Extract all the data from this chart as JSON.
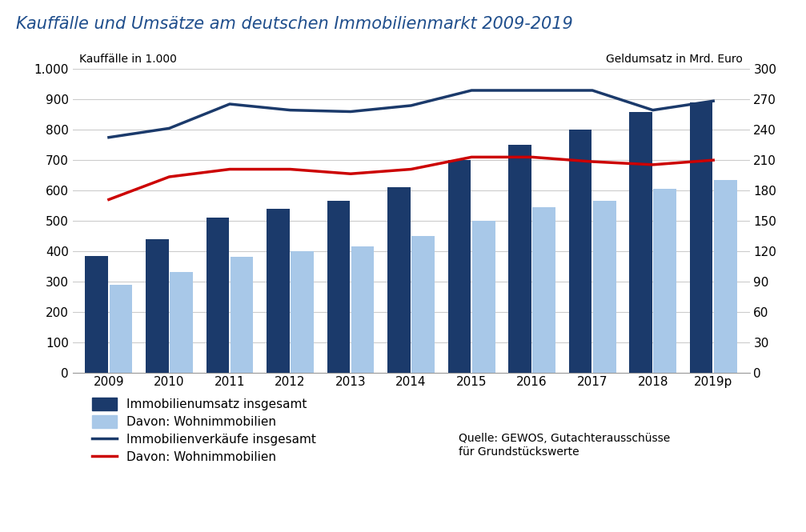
{
  "title": "Kauffälle und Umsätze am deutschen Immobilienmarkt 2009-2019",
  "title_color": "#1F4E8C",
  "years": [
    "2009",
    "2010",
    "2011",
    "2012",
    "2013",
    "2014",
    "2015",
    "2016",
    "2017",
    "2018",
    "2019p"
  ],
  "immo_umsatz_gesamt": [
    385,
    440,
    510,
    540,
    565,
    610,
    700,
    750,
    800,
    860,
    890
  ],
  "davon_wohn": [
    290,
    330,
    380,
    400,
    415,
    450,
    500,
    545,
    565,
    605,
    635
  ],
  "immo_verkaeufe_gesamt": [
    775,
    805,
    885,
    865,
    860,
    880,
    930,
    930,
    930,
    865,
    895
  ],
  "davon_wohn_red_left": [
    570,
    645,
    670,
    670,
    655,
    670,
    710,
    710,
    695,
    685,
    700
  ],
  "left_ylim": [
    0,
    1000
  ],
  "right_ylim": [
    0,
    300
  ],
  "left_yticks": [
    0,
    100,
    200,
    300,
    400,
    500,
    600,
    700,
    800,
    900,
    1000
  ],
  "right_yticks": [
    0,
    30,
    60,
    90,
    120,
    150,
    180,
    210,
    240,
    270,
    300
  ],
  "ylabel_left": "Kauffälle in 1.000",
  "ylabel_right": "Geldumsatz in Mrd. Euro",
  "bar_color_dark": "#1B3A6B",
  "bar_color_light": "#A8C8E8",
  "line_color_dark": "#1B3A6B",
  "line_color_red": "#CC0000",
  "legend_items": [
    {
      "label": "Immobilienumsatz insgesamt",
      "type": "bar",
      "color": "#1B3A6B"
    },
    {
      "label": "Davon: Wohnimmobilien",
      "type": "bar",
      "color": "#A8C8E8"
    },
    {
      "label": "Immobilienverkäufe insgesamt",
      "type": "line",
      "color": "#1B3A6B"
    },
    {
      "label": "Davon: Wohnimmobilien",
      "type": "line",
      "color": "#CC0000"
    }
  ],
  "source_text": "Quelle: GEWOS, Gutachterausschüsse\nfür Grundstückswerte",
  "background_color": "#FFFFFF",
  "grid_color": "#CCCCCC"
}
